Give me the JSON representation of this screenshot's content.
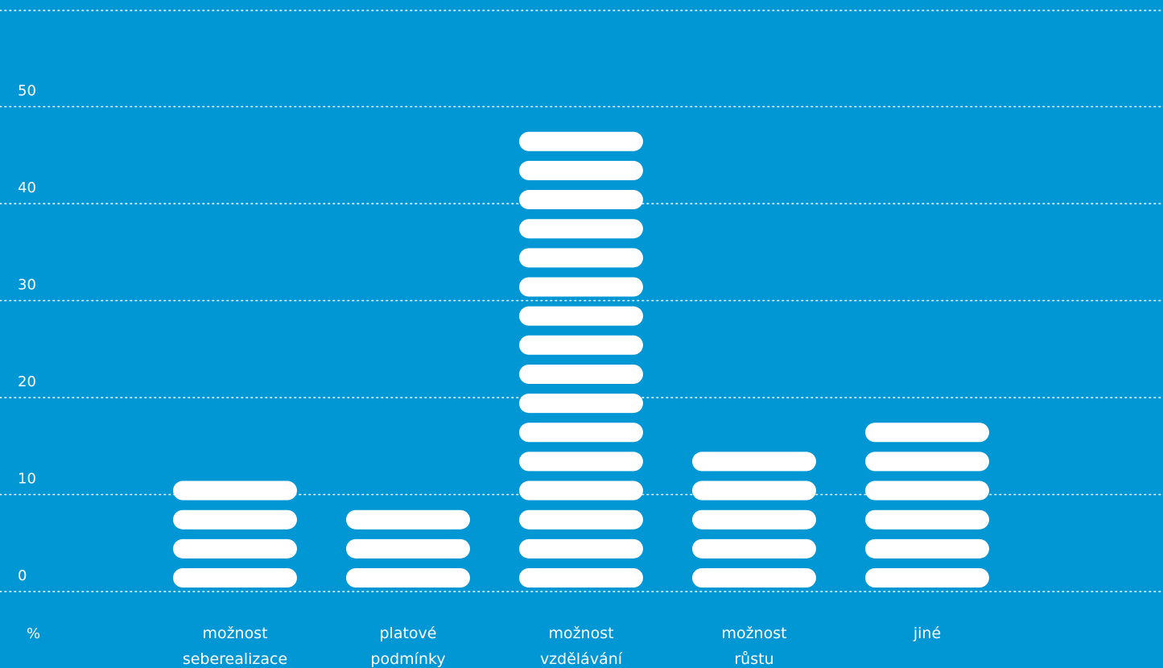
{
  "chart_data": {
    "type": "bar",
    "style": "stacked-segments",
    "unit_label": "%",
    "categories": [
      [
        "možnost",
        "seberealizace"
      ],
      [
        "platové",
        "podmínky"
      ],
      [
        "možnost",
        "vzdělávání"
      ],
      [
        "možnost",
        "růstu"
      ],
      [
        "jiné"
      ]
    ],
    "values": [
      12,
      9,
      48,
      15,
      18
    ],
    "segment_value": 3,
    "ylim": [
      0,
      50
    ],
    "yticks": [
      0,
      10,
      20,
      30,
      40,
      50
    ],
    "grid": true,
    "colors": {
      "background": "#0196d4",
      "bar": "#ffffff",
      "grid": "#ffffff",
      "text": "#ffffff"
    }
  }
}
